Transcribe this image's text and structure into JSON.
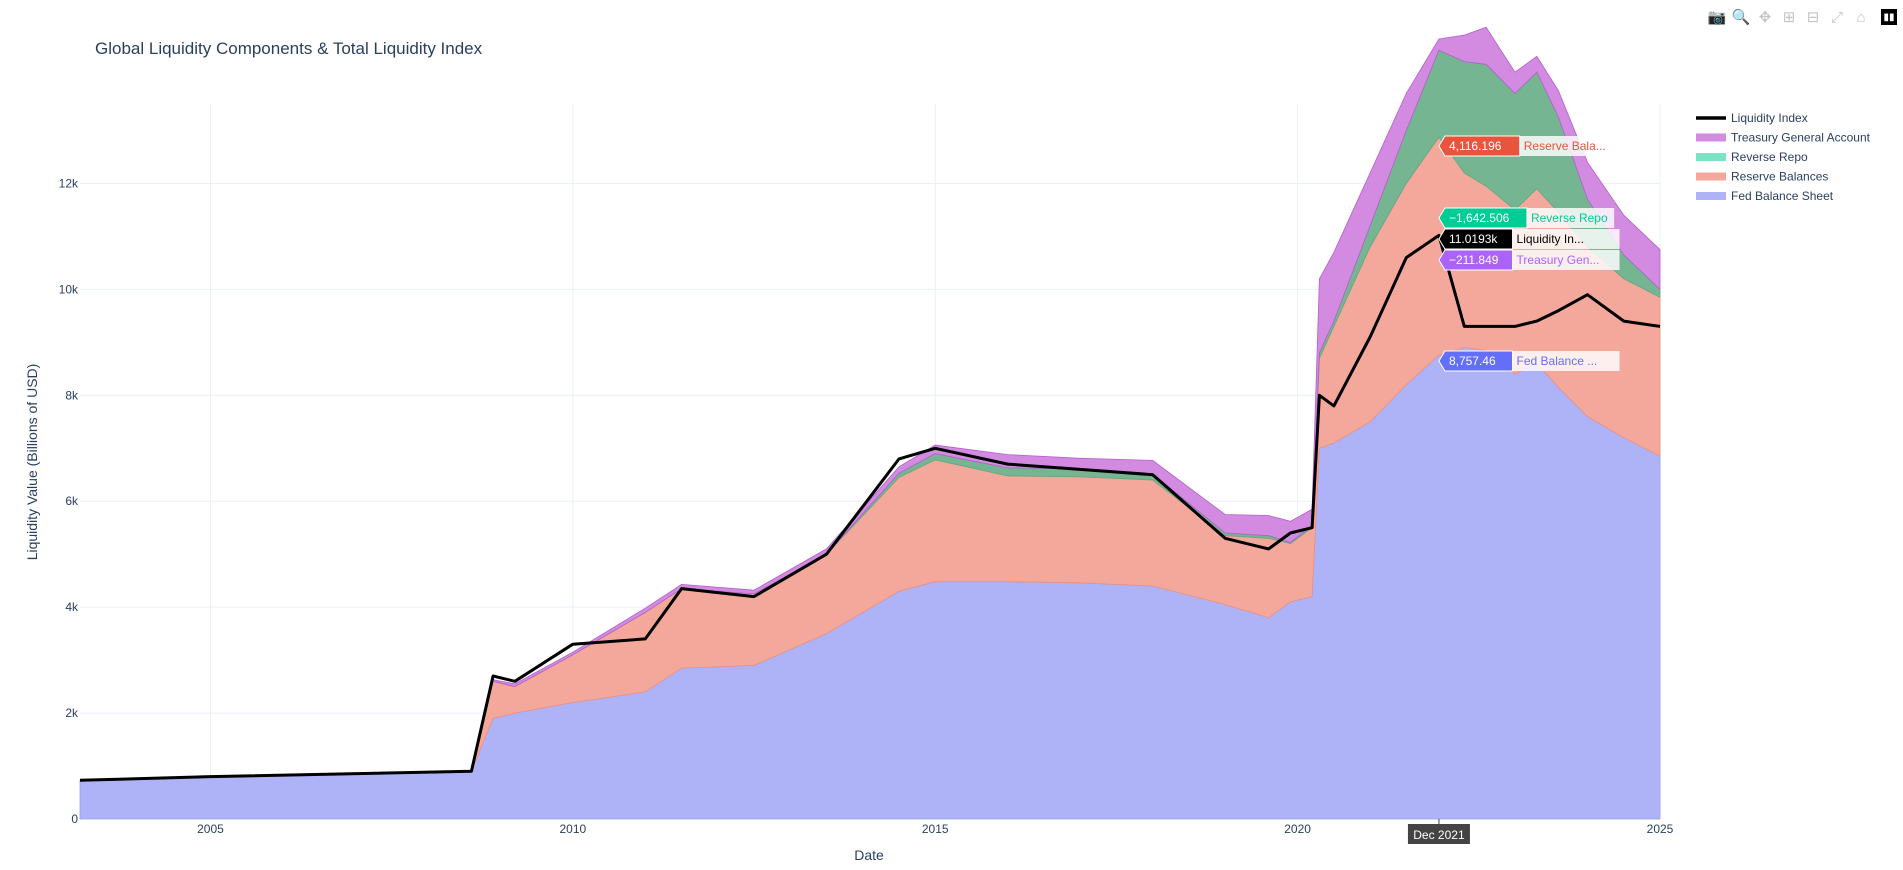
{
  "modebar": {
    "buttons": [
      {
        "name": "camera-icon",
        "glyph": "📷"
      },
      {
        "name": "zoom-icon",
        "glyph": "🔍"
      },
      {
        "name": "pan-icon",
        "glyph": "✥"
      },
      {
        "name": "zoom-in-icon",
        "glyph": "⊞"
      },
      {
        "name": "zoom-out-icon",
        "glyph": "⊟"
      },
      {
        "name": "autoscale-icon",
        "glyph": "⤢"
      },
      {
        "name": "reset-axes-icon",
        "glyph": "⌂"
      }
    ],
    "logo_icon": "plotly-logo-icon"
  },
  "chart_data": {
    "type": "area",
    "title": "Global Liquidity Components & Total Liquidity Index",
    "xlabel": "Date",
    "ylabel": "Liquidity Value (Billions of USD)",
    "xlim": [
      2003.2,
      2025.0
    ],
    "ylim": [
      0,
      13500
    ],
    "x_ticks": [
      2005,
      2010,
      2015,
      2020,
      2025
    ],
    "x_tick_labels": [
      "2005",
      "2010",
      "2015",
      "2020",
      "2025"
    ],
    "y_ticks": [
      0,
      2000,
      4000,
      6000,
      8000,
      10000,
      12000
    ],
    "y_tick_labels": [
      "0",
      "2k",
      "4k",
      "6k",
      "8k",
      "10k",
      "12k"
    ],
    "grid": true,
    "legend_position": "top-right",
    "x": [
      2003.2,
      2005.0,
      2008.6,
      2008.9,
      2009.2,
      2010.0,
      2011.0,
      2011.5,
      2012.5,
      2013.5,
      2014.5,
      2015.0,
      2016.0,
      2017.0,
      2018.0,
      2019.0,
      2019.6,
      2019.9,
      2020.2,
      2020.3,
      2020.5,
      2021.0,
      2021.5,
      2021.95,
      2022.3,
      2022.6,
      2023.0,
      2023.3,
      2023.6,
      2024.0,
      2024.5,
      2025.0
    ],
    "series": [
      {
        "name": "Fed Balance Sheet",
        "color": "#aeb3f7",
        "line": "#9aa0f0",
        "values": [
          720,
          790,
          900,
          1900,
          2000,
          2200,
          2400,
          2850,
          2900,
          3500,
          4300,
          4480,
          4480,
          4460,
          4400,
          4050,
          3800,
          4100,
          4200,
          7000,
          7100,
          7500,
          8200,
          8757,
          8900,
          8850,
          8400,
          8600,
          8150,
          7600,
          7200,
          6850
        ]
      },
      {
        "name": "Reserve Balances",
        "color": "#f4a89b",
        "line": "#ef8e7c",
        "values": [
          10,
          20,
          0,
          700,
          500,
          900,
          1500,
          1500,
          1350,
          1500,
          2150,
          2300,
          2000,
          2000,
          2000,
          1300,
          1500,
          1100,
          1300,
          1700,
          2200,
          3300,
          3800,
          4116,
          3300,
          3100,
          3100,
          3300,
          3300,
          3200,
          3000,
          3000
        ]
      },
      {
        "name": "Reverse Repo",
        "color": "#76b592",
        "line": "#5fa882",
        "values": [
          0,
          0,
          0,
          0,
          0,
          0,
          0,
          0,
          0,
          0,
          80,
          120,
          150,
          150,
          120,
          50,
          50,
          20,
          50,
          100,
          100,
          400,
          1000,
          1642.506,
          2100,
          2300,
          2200,
          2200,
          1800,
          900,
          450,
          150
        ]
      },
      {
        "name": "Treasury General Account",
        "color": "#d28be0",
        "line": "#b45fcc",
        "values": [
          0,
          0,
          0,
          30,
          50,
          50,
          80,
          80,
          70,
          100,
          120,
          160,
          250,
          200,
          250,
          350,
          380,
          400,
          300,
          1400,
          1300,
          1000,
          700,
          211.849,
          500,
          700,
          400,
          300,
          500,
          700,
          750,
          750
        ]
      },
      {
        "name": "Liquidity Index",
        "color": "#000000",
        "line": "#000000",
        "values": [
          730,
          800,
          900,
          2700,
          2600,
          3300,
          3400,
          4350,
          4200,
          5000,
          6800,
          7000,
          6700,
          6600,
          6500,
          5300,
          5100,
          5400,
          5500,
          8000,
          7800,
          9100,
          10600,
          11019.3,
          9300,
          9300,
          9300,
          9400,
          9600,
          9900,
          9400,
          9300
        ]
      }
    ],
    "hover": {
      "x_label": "Dec 2021",
      "labels": [
        {
          "series": "Reserve Balances",
          "value": "4,116.196",
          "text": "Reserve Bala...",
          "box": "#e8543c",
          "textcolor": "#e8543c"
        },
        {
          "series": "Reverse Repo",
          "value": "−1,642.506",
          "text": "Reverse Repo",
          "box": "#00cc96",
          "textcolor": "#00cc96"
        },
        {
          "series": "Liquidity Index",
          "value": "11.0193k",
          "text": "Liquidity In...",
          "box": "#000000",
          "textcolor": "#000000"
        },
        {
          "series": "Treasury General Account",
          "value": "−211.849",
          "text": "Treasury Gen...",
          "box": "#ab63fa",
          "textcolor": "#ab63fa"
        },
        {
          "series": "Fed Balance Sheet",
          "value": "8,757.46",
          "text": "Fed Balance ...",
          "box": "#636efa",
          "textcolor": "#636efa"
        }
      ]
    },
    "legend": [
      {
        "name": "Liquidity Index",
        "color": "#000000",
        "kind": "line"
      },
      {
        "name": "Treasury General Account",
        "color": "#d28be0",
        "kind": "fill"
      },
      {
        "name": "Reverse Repo",
        "color": "#7be3c4",
        "kind": "fill"
      },
      {
        "name": "Reserve Balances",
        "color": "#f4a89b",
        "kind": "fill"
      },
      {
        "name": "Fed Balance Sheet",
        "color": "#aeb3f7",
        "kind": "fill"
      }
    ]
  }
}
